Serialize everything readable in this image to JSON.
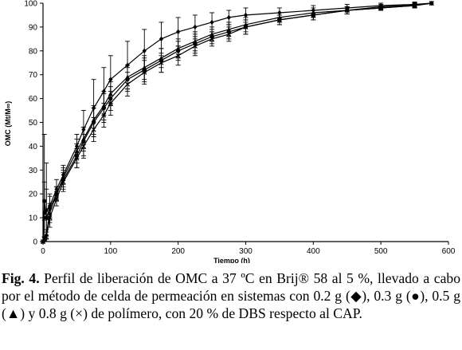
{
  "chart_data": {
    "type": "line",
    "xlabel": "Tiempo (h)",
    "ylabel": "OMC (Mt/M∞)",
    "xlim": [
      0,
      600
    ],
    "ylim": [
      0,
      100
    ],
    "xticks": [
      0,
      100,
      200,
      300,
      400,
      500,
      600
    ],
    "yticks": [
      0,
      10,
      20,
      30,
      40,
      50,
      60,
      70,
      80,
      90,
      100
    ],
    "grid": false,
    "legend": "none",
    "series": [
      {
        "marker": "diamond",
        "x": [
          0,
          2,
          5,
          10,
          20,
          30,
          50,
          60,
          75,
          90,
          100,
          125,
          150,
          175,
          200,
          225,
          250,
          275,
          300,
          350,
          400,
          450,
          500,
          550,
          575
        ],
        "y": [
          0,
          12,
          13,
          15,
          22,
          28,
          40,
          47,
          56,
          63,
          68,
          74,
          80,
          85,
          88,
          90,
          92,
          94,
          95,
          96,
          97,
          98,
          99,
          99.5,
          100
        ],
        "err": [
          0,
          33,
          20,
          5,
          4,
          4,
          5,
          8,
          12,
          10,
          10,
          10,
          9,
          7,
          6,
          5,
          4,
          3,
          3,
          2,
          2,
          1.5,
          1,
          1,
          0
        ]
      },
      {
        "marker": "circle",
        "x": [
          0,
          2,
          5,
          10,
          20,
          30,
          50,
          60,
          75,
          90,
          100,
          125,
          150,
          175,
          200,
          225,
          250,
          275,
          300,
          350,
          400,
          450,
          500,
          550,
          575
        ],
        "y": [
          0,
          17,
          10,
          14,
          20,
          26,
          36,
          42,
          50,
          56,
          60,
          68,
          72,
          76,
          80,
          83,
          86,
          88,
          90,
          93,
          95,
          97,
          98,
          99,
          100
        ],
        "err": [
          0,
          8,
          12,
          5,
          3,
          4,
          5,
          6,
          6,
          6,
          5,
          5,
          5,
          5,
          4,
          4,
          3,
          3,
          3,
          2,
          2,
          1.5,
          1,
          1,
          0
        ]
      },
      {
        "marker": "triangle",
        "x": [
          0,
          2,
          5,
          10,
          20,
          30,
          50,
          60,
          75,
          90,
          100,
          125,
          150,
          175,
          200,
          225,
          250,
          275,
          300,
          350,
          400,
          450,
          500,
          550,
          575
        ],
        "y": [
          0,
          1,
          3,
          12,
          20,
          27,
          38,
          43,
          51,
          57,
          62,
          69,
          73,
          77,
          81,
          84,
          87,
          89,
          91,
          94,
          96,
          97,
          98.5,
          99.2,
          100
        ],
        "err": [
          0,
          1,
          2,
          4,
          3,
          4,
          5,
          5,
          6,
          6,
          5,
          5,
          5,
          4,
          4,
          4,
          3,
          3,
          3,
          2,
          2,
          1.5,
          1,
          1,
          0
        ]
      },
      {
        "marker": "cross",
        "x": [
          0,
          2,
          5,
          10,
          20,
          30,
          50,
          60,
          75,
          90,
          100,
          125,
          150,
          175,
          200,
          225,
          250,
          275,
          300,
          350,
          400,
          450,
          500,
          550,
          575
        ],
        "y": [
          0,
          1,
          2,
          10,
          18,
          25,
          35,
          40,
          47,
          53,
          58,
          66,
          71,
          75,
          78,
          82,
          85,
          87,
          90,
          93,
          95,
          97,
          98,
          99,
          100
        ],
        "err": [
          0,
          1,
          2,
          4,
          3,
          4,
          4,
          5,
          5,
          5,
          5,
          5,
          5,
          4,
          4,
          4,
          3,
          3,
          3,
          2,
          2,
          1.5,
          1,
          1,
          0
        ]
      }
    ]
  },
  "caption": {
    "label": "Fig. 4.",
    "text": " Perfil de liberación de OMC a 37 ºC en Brij® 58 al 5 %, llevado a cabo por el método de celda de permeación en sistemas con 0.2 g (◆), 0.3 g (●), 0.5 g (▲) y 0.8 g (×) de polímero, con 20 % de DBS respecto al CAP."
  }
}
